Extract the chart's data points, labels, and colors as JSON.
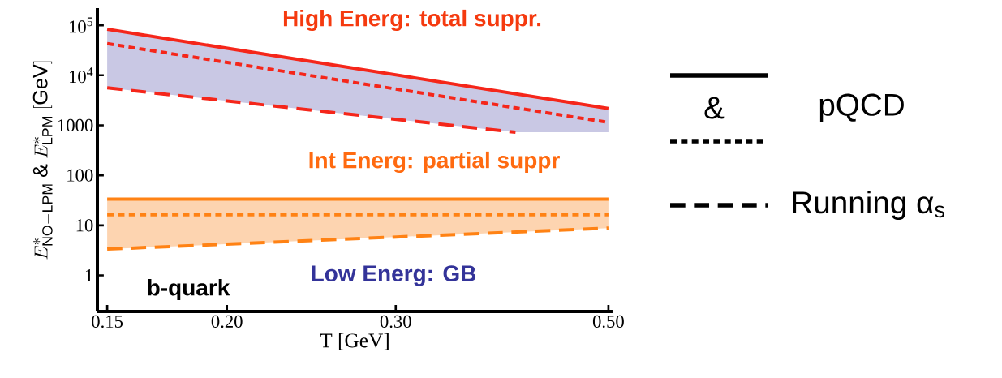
{
  "chart_data": {
    "type": "line",
    "xlabel": "T [GeV]",
    "ylabel": "E^{*}_{\\mathrm{NO-LPM}}\\ \\&\\ E^{*}_{\\mathrm{LPM}}\\ [\\mathrm{GeV}]",
    "log": "xy",
    "xlim": [
      0.1465,
      0.505
    ],
    "ylim": [
      0.19,
      220000
    ],
    "xticks": [
      {
        "value": 0.15,
        "label": "0.15"
      },
      {
        "value": 0.2,
        "label": "0.20"
      },
      {
        "value": 0.3,
        "label": "0.30"
      },
      {
        "value": 0.5,
        "label": "0.50"
      }
    ],
    "yticks": [
      1,
      10,
      100,
      1000,
      {
        "value": 10000,
        "label": "10$^{4}$"
      },
      {
        "value": 100000,
        "label": "10$^{5}$"
      }
    ],
    "series": [
      {
        "color": "#f5261a",
        "line_style": "solid",
        "x": [
          0.15,
          0.5
        ],
        "values": [
          83000,
          2170
        ]
      },
      {
        "color": "#f5261a",
        "line_style": "dotted",
        "x": [
          0.15,
          0.5
        ],
        "values": [
          43000,
          1140
        ]
      },
      {
        "color": "#f5261a",
        "line_style": "dashed",
        "x": [
          0.15,
          0.4,
          0.5
        ],
        "values": [
          5600,
          725,
          null
        ],
        "lower": [
          5600,
          725,
          725
        ],
        "upper": [
          83000,
          4260,
          2170
        ]
      },
      {
        "color": "#ff8214",
        "line_style": "solid",
        "x": [
          0.15,
          0.5
        ],
        "values": [
          33.5,
          33.5
        ]
      },
      {
        "color": "#ff8214",
        "line_style": "dotted",
        "x": [
          0.15,
          0.5
        ],
        "values": [
          16.3,
          16.3
        ]
      },
      {
        "color": "#ff8214",
        "line_style": "dashed",
        "x": [
          0.15,
          0.5
        ],
        "values": [
          3.35,
          8.8
        ],
        "lower": [
          3.35,
          8.8
        ],
        "upper": [
          33.5,
          33.5
        ]
      }
    ],
    "annotations": [
      "High Energ: total suppr.",
      "Int Energ: partial suppr",
      "Low Energ: GB",
      "b-quark",
      "&",
      "pQCD",
      "Running α$_{s}$"
    ]
  }
}
